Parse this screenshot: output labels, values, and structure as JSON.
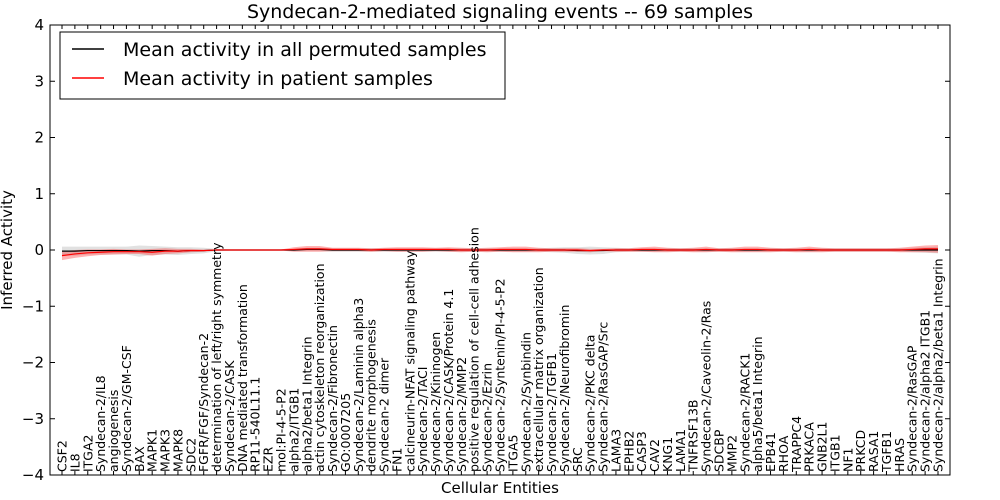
{
  "chart_data": {
    "type": "line",
    "title": "Syndecan-2-mediated signaling events -- 69 samples",
    "xlabel": "Cellular Entities",
    "ylabel": "Inferred Activity",
    "ylim": [
      -4,
      4
    ],
    "yticks": [
      -4,
      -3,
      -2,
      -1,
      0,
      1,
      2,
      3,
      4
    ],
    "grid": false,
    "legend_position": "top-left",
    "categories": [
      "CSF2",
      "IL8",
      "ITGA2",
      "Syndecan-2/IL8",
      "angiogenesis",
      "Syndecan-2/GM-CSF",
      "BAX",
      "MAPK1",
      "MAPK3",
      "MAPK8",
      "SDC2",
      "FGFR/FGF/Syndecan-2",
      "determination of left/right symmetry",
      "Syndecan-2/CASK",
      "DNA mediated transformation",
      "RP11-540L11.1",
      "EZR",
      "mol:PI-4-5-P2",
      "alpha2/ITGB1",
      "alpha2/beta1 Integrin",
      "actin cytoskeleton reorganization",
      "Syndecan-2/Fibronectin",
      "GO:0007205",
      "Syndecan-2/Laminin alpha3",
      "dendrite morphogenesis",
      "Syndecan-2 dimer",
      "FN1",
      "calcineurin-NFAT signaling pathway",
      "Syndecan-2/TACI",
      "Syndecan-2/Kininogen",
      "Syndecan-2/CASK/Protein 4.1",
      "Syndecan-2/MMP2",
      "positive regulation of cell-cell adhesion",
      "Syndecan-2/Ezrin",
      "Syndecan-2/Syntenin/PI-4-5-P2",
      "ITGA5",
      "Syndecan-2/Synbindin",
      "extracellular matrix organization",
      "Syndecan-2/TGFB1",
      "Syndecan-2/Neurofibromin",
      "SRC",
      "Syndecan-2/PKC delta",
      "Syndecan-2/RasGAP/Src",
      "LAMA3",
      "EPHB2",
      "CASP3",
      "CAV2",
      "KNG1",
      "LAMA1",
      "TNFRSF13B",
      "Syndecan-2/Caveolin-2/Ras",
      "SDCBP",
      "MMP2",
      "Syndecan-2/RACK1",
      "alpha5/beta1 Integrin",
      "EPB41",
      "RHOA",
      "TRAPPC4",
      "PRKACA",
      "GNB2L1",
      "ITGB1",
      "NF1",
      "PRKCD",
      "RASA1",
      "TGFB1",
      "HRAS",
      "Syndecan-2/RasGAP",
      "Syndecan-2/alpha2 ITGB1",
      "Syndecan-2/alpha2/beta1 Integrin"
    ],
    "series": [
      {
        "name": "Mean activity in all permuted samples",
        "color": "#000000",
        "values": [
          -0.02,
          -0.02,
          -0.01,
          -0.01,
          -0.01,
          -0.01,
          -0.02,
          -0.01,
          -0.01,
          -0.02,
          -0.01,
          -0.01,
          0.0,
          0.0,
          0.0,
          0.0,
          0.0,
          0.0,
          0.0,
          0.01,
          0.01,
          0.0,
          0.0,
          0.0,
          0.0,
          0.0,
          0.0,
          0.0,
          0.0,
          0.0,
          0.0,
          0.0,
          0.0,
          0.0,
          0.0,
          0.0,
          0.0,
          0.0,
          0.0,
          0.0,
          -0.01,
          -0.01,
          -0.01,
          0.0,
          0.0,
          0.0,
          0.0,
          0.0,
          0.0,
          0.0,
          0.0,
          0.0,
          0.0,
          0.0,
          0.0,
          0.0,
          0.0,
          0.0,
          0.0,
          0.0,
          0.0,
          0.0,
          0.0,
          0.0,
          0.0,
          0.0,
          0.0,
          0.0,
          0.0
        ],
        "band": [
          0.08,
          0.08,
          0.07,
          0.07,
          0.07,
          0.07,
          0.1,
          0.08,
          0.07,
          0.07,
          0.06,
          0.05,
          0.02,
          0.01,
          0.01,
          0.01,
          0.01,
          0.01,
          0.02,
          0.03,
          0.03,
          0.03,
          0.03,
          0.03,
          0.03,
          0.03,
          0.03,
          0.03,
          0.03,
          0.03,
          0.03,
          0.03,
          0.03,
          0.03,
          0.03,
          0.03,
          0.03,
          0.03,
          0.04,
          0.05,
          0.06,
          0.07,
          0.06,
          0.04,
          0.03,
          0.03,
          0.03,
          0.03,
          0.03,
          0.03,
          0.03,
          0.03,
          0.03,
          0.03,
          0.03,
          0.03,
          0.03,
          0.03,
          0.03,
          0.03,
          0.03,
          0.03,
          0.03,
          0.03,
          0.03,
          0.03,
          0.04,
          0.05,
          0.06
        ]
      },
      {
        "name": "Mean activity in patient samples",
        "color": "#ff0000",
        "values": [
          -0.1,
          -0.07,
          -0.05,
          -0.04,
          -0.03,
          -0.03,
          -0.03,
          -0.04,
          -0.02,
          -0.02,
          -0.01,
          -0.01,
          0.0,
          0.0,
          0.0,
          0.0,
          0.0,
          0.0,
          0.01,
          0.02,
          0.02,
          0.01,
          0.01,
          0.01,
          0.0,
          0.01,
          0.01,
          0.01,
          0.01,
          0.01,
          0.01,
          0.0,
          0.0,
          0.0,
          0.01,
          0.01,
          0.01,
          0.0,
          0.0,
          0.0,
          0.0,
          -0.01,
          0.0,
          0.0,
          0.0,
          0.01,
          0.01,
          0.0,
          0.0,
          0.0,
          0.01,
          0.0,
          0.0,
          0.01,
          0.01,
          0.0,
          0.0,
          0.0,
          0.01,
          0.0,
          0.0,
          0.0,
          0.0,
          0.0,
          0.0,
          0.0,
          0.01,
          0.02,
          0.02
        ],
        "band": [
          0.08,
          0.07,
          0.06,
          0.05,
          0.05,
          0.04,
          0.04,
          0.06,
          0.05,
          0.04,
          0.03,
          0.02,
          0.01,
          0.01,
          0.01,
          0.01,
          0.01,
          0.01,
          0.04,
          0.05,
          0.05,
          0.03,
          0.03,
          0.03,
          0.03,
          0.03,
          0.04,
          0.04,
          0.04,
          0.03,
          0.04,
          0.04,
          0.03,
          0.04,
          0.04,
          0.05,
          0.05,
          0.04,
          0.03,
          0.03,
          0.03,
          0.03,
          0.02,
          0.03,
          0.03,
          0.04,
          0.05,
          0.04,
          0.03,
          0.04,
          0.05,
          0.03,
          0.04,
          0.05,
          0.05,
          0.04,
          0.03,
          0.04,
          0.05,
          0.04,
          0.03,
          0.03,
          0.03,
          0.03,
          0.03,
          0.04,
          0.05,
          0.06,
          0.07
        ]
      }
    ]
  }
}
